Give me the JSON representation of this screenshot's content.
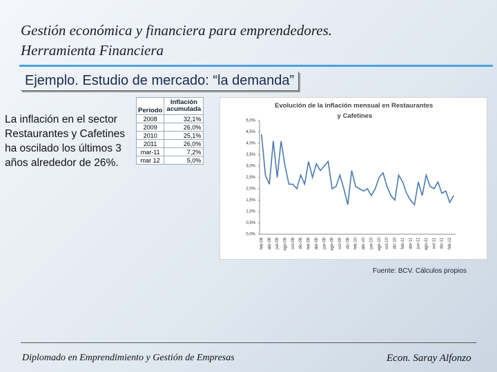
{
  "slide": {
    "title_lines": [
      "Gestión económica y financiera para emprendedores.",
      "Herramienta Financiera"
    ],
    "subtitle": "Ejemplo. Estudio de mercado: “la demanda”",
    "body": "La inflación en el sector Restaurantes y Cafetines ha oscilado los últimos 3 años alrededor de 26%.",
    "source": "Fuente: BCV. Cálculos propios",
    "footer_left": "Diplomado en Emprendimiento y Gestión de Empresas",
    "footer_right": "Econ. Saray Alfonzo"
  },
  "table": {
    "headers": [
      "Período",
      "Inflación acumulada"
    ],
    "rows": [
      [
        "2008",
        "32,1%"
      ],
      [
        "2009",
        "26,0%"
      ],
      [
        "2010",
        "25,1%"
      ],
      [
        "2011",
        "26,0%"
      ],
      [
        "mar-11",
        "7,2%"
      ],
      [
        "mar 12",
        "5,0%"
      ]
    ]
  },
  "chart_data": {
    "type": "line",
    "title": "Evolución de la inflación mensual en Restaurantes y Cafetines",
    "categories": [
      "feb-08",
      null,
      "abr-08",
      null,
      "jun-08",
      null,
      "ago-08",
      null,
      "oct-08",
      null,
      "dic-08",
      null,
      "feb-09",
      null,
      "abr-09",
      null,
      "jun-09",
      null,
      "ago-09",
      null,
      "oct-09",
      null,
      "dic-09",
      null,
      "feb-10",
      null,
      "abr-10",
      null,
      "jun-10",
      null,
      "ago-10",
      null,
      "oct-10",
      null,
      "dic-10",
      null,
      "feb-11",
      null,
      "abr-11",
      null,
      "jun-11",
      null,
      "ago-11",
      null,
      "oct-11",
      null,
      "dic-11",
      null,
      "feb-12",
      null
    ],
    "values": [
      4.4,
      2.6,
      2.2,
      4.1,
      2.5,
      4.1,
      3.0,
      2.2,
      2.2,
      2.0,
      2.6,
      2.2,
      3.2,
      2.5,
      3.1,
      2.8,
      3.0,
      3.2,
      2.0,
      2.1,
      2.6,
      2.0,
      1.3,
      2.8,
      2.1,
      2.0,
      1.9,
      2.0,
      1.7,
      2.0,
      2.5,
      2.7,
      2.1,
      1.7,
      1.5,
      2.6,
      2.3,
      1.8,
      1.5,
      1.3,
      2.3,
      1.7,
      2.6,
      2.1,
      2.0,
      2.3,
      1.8,
      1.9,
      1.4,
      1.7
    ],
    "color": "#4a7ab0",
    "ylim": [
      0,
      5
    ],
    "yticks": [
      {
        "value": 0,
        "label": "0,0%"
      },
      {
        "value": 0.5,
        "label": "0,5%"
      },
      {
        "value": 1,
        "label": "1,0%"
      },
      {
        "value": 1.5,
        "label": "1,5%"
      },
      {
        "value": 2,
        "label": "2,0%"
      },
      {
        "value": 2.5,
        "label": "2,5%"
      },
      {
        "value": 3,
        "label": "3,0%"
      },
      {
        "value": 3.5,
        "label": "3,5%"
      },
      {
        "value": 4,
        "label": "4,0%"
      },
      {
        "value": 4.5,
        "label": "4,5%"
      },
      {
        "value": 5,
        "label": "5,0%"
      }
    ]
  }
}
